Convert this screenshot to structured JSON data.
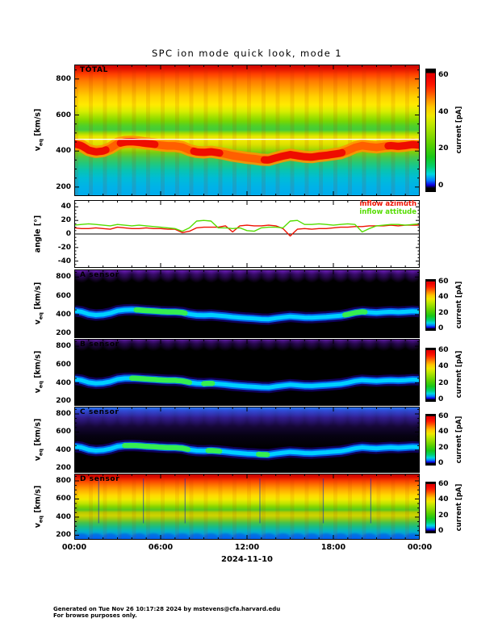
{
  "title": "SPC ion mode quick look, mode 1",
  "x_axis": {
    "tick_labels": [
      "00:00",
      "06:00",
      "12:00",
      "18:00",
      "00:00"
    ],
    "date": "2024-11-10"
  },
  "velocity_axis": {
    "label_main": "v",
    "label_sub": "eq",
    "label_units": " [km/s]",
    "ticks": [
      200,
      400,
      600,
      800
    ],
    "range_kms": [
      150,
      880
    ]
  },
  "angle_axis": {
    "label": "angle [°]",
    "ticks": [
      -40,
      -20,
      0,
      20,
      40
    ],
    "range_deg": [
      -50,
      50
    ]
  },
  "colorbar": {
    "label": "current [pA]",
    "ticks": [
      0,
      20,
      40,
      60
    ],
    "range_pA": [
      0,
      60
    ]
  },
  "angle_legend": [
    {
      "label": "inflow azimuth",
      "color": "#ee1100"
    },
    {
      "label": "inflow attitude",
      "color": "#55dd00"
    }
  ],
  "footer": {
    "line1": "Generated on Tue Nov 26 10:17:28 2024 by mstevens@cfa.harvard.edu",
    "line2": "For browse purposes only."
  },
  "chart_data": {
    "type": "heatmap",
    "description": "Five time-vs-velocity current spectrograms (TOTAL, A, B, C, D sensors) plus one line panel of inflow angles, spanning 24 hours of 2024-11-10.",
    "x_hours_range": [
      0,
      24
    ],
    "date": "2024-11-10",
    "wind_speed_track": {
      "hours": [
        0,
        0.5,
        1,
        1.5,
        2,
        2.5,
        3,
        3.5,
        4,
        4.5,
        5,
        5.5,
        6,
        6.5,
        7,
        7.5,
        8,
        8.5,
        9,
        9.5,
        10,
        10.5,
        11,
        11.5,
        12,
        12.5,
        13,
        13.5,
        14,
        14.5,
        15,
        15.5,
        16,
        16.5,
        17,
        17.5,
        18,
        18.5,
        19,
        19.5,
        20,
        20.5,
        21,
        21.5,
        22,
        22.5,
        23,
        23.5,
        24
      ],
      "v_kms": [
        440,
        430,
        405,
        395,
        400,
        415,
        440,
        450,
        452,
        448,
        442,
        438,
        432,
        428,
        428,
        422,
        405,
        395,
        392,
        396,
        390,
        383,
        374,
        368,
        362,
        358,
        352,
        350,
        362,
        372,
        380,
        374,
        368,
        366,
        372,
        376,
        382,
        388,
        402,
        420,
        430,
        424,
        420,
        426,
        430,
        426,
        430,
        436,
        432
      ]
    },
    "angle_series": [
      {
        "name": "inflow azimuth",
        "color": "#ee1100",
        "hours": [
          0,
          0.5,
          1,
          1.5,
          2,
          2.5,
          3,
          3.5,
          4,
          4.5,
          5,
          5.5,
          6,
          6.5,
          7,
          7.5,
          8,
          8.5,
          9,
          9.5,
          10,
          10.5,
          11,
          11.5,
          12,
          12.5,
          13,
          13.5,
          14,
          14.5,
          15,
          15.5,
          16,
          16.5,
          17,
          17.5,
          18,
          18.5,
          19,
          19.5,
          20,
          20.5,
          21,
          21.5,
          22,
          22.5,
          23,
          23.5,
          24
        ],
        "deg": [
          9,
          8,
          8,
          9,
          8,
          7,
          10,
          9,
          8,
          8,
          9,
          8,
          8,
          7,
          7,
          2,
          4,
          9,
          10,
          10,
          10,
          12,
          3,
          12,
          13,
          12,
          12,
          13,
          12,
          8,
          -3,
          7,
          8,
          7,
          8,
          8,
          9,
          10,
          10,
          11,
          11,
          12,
          12,
          12,
          13,
          12,
          13,
          13,
          13
        ]
      },
      {
        "name": "inflow attitude",
        "color": "#55dd00",
        "hours": [
          0,
          0.5,
          1,
          1.5,
          2,
          2.5,
          3,
          3.5,
          4,
          4.5,
          5,
          5.5,
          6,
          6.5,
          7,
          7.5,
          8,
          8.5,
          9,
          9.5,
          10,
          10.5,
          11,
          11.5,
          12,
          12.5,
          13,
          13.5,
          14,
          14.5,
          15,
          15.5,
          16,
          16.5,
          17,
          17.5,
          18,
          18.5,
          19,
          19.5,
          20,
          20.5,
          21,
          21.5,
          22,
          22.5,
          23,
          23.5,
          24
        ],
        "deg": [
          13,
          14,
          15,
          14,
          13,
          12,
          14,
          13,
          12,
          13,
          12,
          11,
          10,
          9,
          8,
          4,
          9,
          19,
          20,
          19,
          9,
          9,
          8,
          9,
          5,
          4,
          9,
          10,
          10,
          9,
          19,
          20,
          14,
          14,
          15,
          14,
          13,
          14,
          15,
          14,
          3,
          8,
          12,
          13,
          14,
          14,
          13,
          14,
          15
        ]
      }
    ],
    "heatmap_panels": {
      "total": {
        "label": "TOTAL",
        "value_range_pA": [
          0,
          60
        ],
        "y_range_kms": [
          150,
          880
        ],
        "white_line_kms": 465,
        "enhanced_segments_hours": [
          [
            0,
            2.2
          ],
          [
            3.2,
            5.6
          ],
          [
            8.3,
            10.2
          ],
          [
            13.2,
            18.6
          ],
          [
            21.8,
            24
          ]
        ],
        "notes": "full rainbow background (red at high v, cyan at low v); enhanced red current band follows wind_speed_track; hourly vertical striping"
      },
      "a": {
        "label": "A sensor",
        "bright_segments_hours": [
          [
            4.3,
            7.8
          ],
          [
            18.8,
            20.3
          ]
        ],
        "notes": "black background, purple scalloped arcs at top, cyan/green beam band along wind_speed_track"
      },
      "b": {
        "label": "B sensor",
        "bright_segments_hours": [
          [
            4.0,
            8.0
          ],
          [
            9.0,
            9.6
          ]
        ],
        "notes": "black background, purple scalloped arcs at top, cyan/green beam band along wind_speed_track"
      },
      "c": {
        "label": "C sensor",
        "bright_segments_hours": [
          [
            3.5,
            8.0
          ],
          [
            9.3,
            10.2
          ],
          [
            12.8,
            13.4
          ]
        ],
        "notes": "blue-to-purple gradient at high velocities, cyan/green beam band along wind_speed_track"
      },
      "d": {
        "label": "D sensor",
        "gap_hours": [
          1.7,
          4.8,
          7.7,
          12.9,
          17.3,
          20.6
        ],
        "yellow_band_kms": [
          440,
          480
        ],
        "notes": "full rainbow background, yellow band near 460 km/s, scalloped blue bottom, thin vertical gap lines"
      }
    }
  }
}
